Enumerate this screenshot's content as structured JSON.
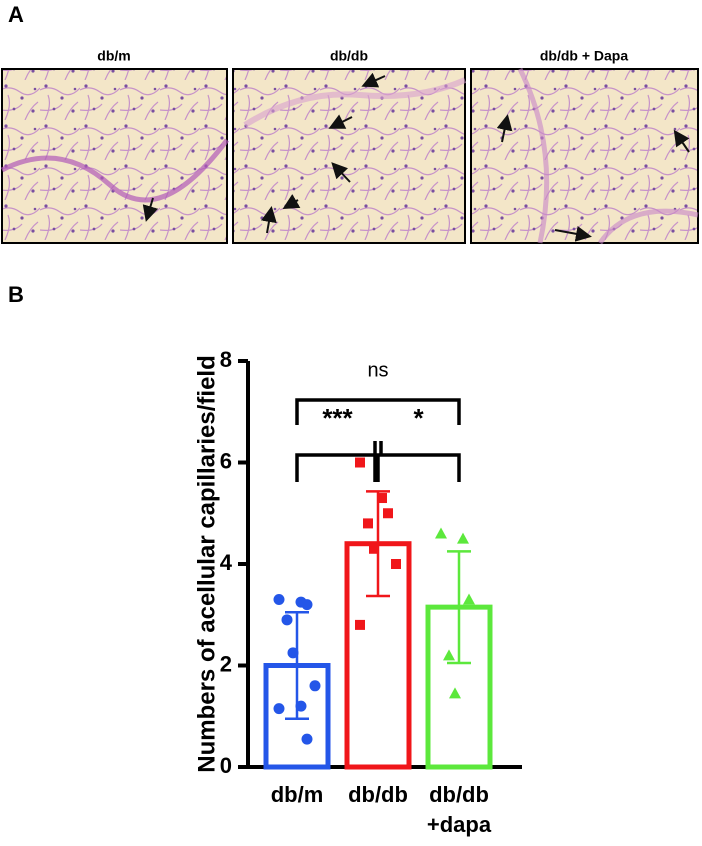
{
  "figure": {
    "panels": [
      "A",
      "B"
    ],
    "image_titles": [
      "db/m",
      "db/db",
      "db/db + Dapa"
    ]
  },
  "chart_data": {
    "type": "bar",
    "y_label": "Numbers of acellular capillaries/field",
    "categories": [
      "db/m",
      "db/db",
      "db/db\n+dapa"
    ],
    "values": [
      2.0,
      4.4,
      3.15
    ],
    "errors": [
      1.05,
      1.03,
      1.1
    ],
    "points": [
      [
        3.3,
        3.25,
        3.2,
        2.9,
        2.25,
        1.6,
        1.15,
        1.2,
        0.55
      ],
      [
        6.0,
        5.3,
        5.0,
        4.8,
        4.3,
        4.0,
        2.8
      ],
      [
        4.6,
        4.5,
        3.3,
        2.2,
        1.45
      ]
    ],
    "colors": [
      "#2456e8",
      "#f0161a",
      "#5ce83c"
    ],
    "annotations": [
      "ns",
      "***",
      "*"
    ],
    "ylim": [
      0,
      8
    ],
    "yticks": [
      0,
      2,
      4,
      6,
      8
    ]
  }
}
